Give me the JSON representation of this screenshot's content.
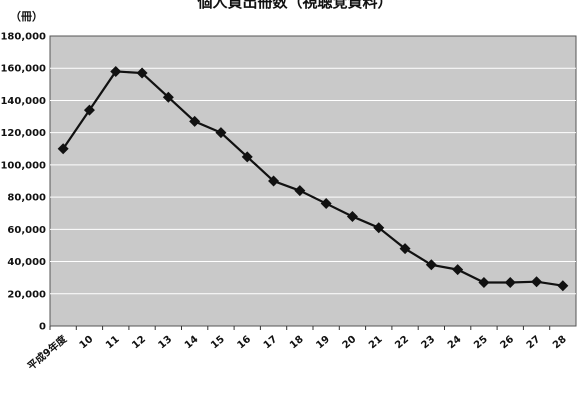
{
  "chart_data": {
    "type": "line",
    "title": "個人貸出冊数（視聴覚資料）",
    "unit_label": "（冊）",
    "categories": [
      "平成9年度",
      "10",
      "11",
      "12",
      "13",
      "14",
      "15",
      "16",
      "17",
      "18",
      "19",
      "20",
      "21",
      "22",
      "23",
      "24",
      "25",
      "26",
      "27",
      "28"
    ],
    "series": [
      {
        "values": [
          110000,
          134000,
          158000,
          157000,
          142000,
          127000,
          120000,
          105000,
          90000,
          84000,
          76000,
          68000,
          61000,
          48000,
          38000,
          35000,
          27000,
          27000,
          27500,
          25000
        ]
      }
    ],
    "ylim": [
      0,
      180000
    ],
    "yticks": [
      "0",
      "20,000",
      "40,000",
      "60,000",
      "80,000",
      "100,000",
      "120,000",
      "140,000",
      "160,000",
      "180,000"
    ],
    "grid": true,
    "legend": "none",
    "colors": {
      "plot_bg": "#c9c9c9",
      "line": "#111111",
      "grid": "#ffffff"
    }
  }
}
